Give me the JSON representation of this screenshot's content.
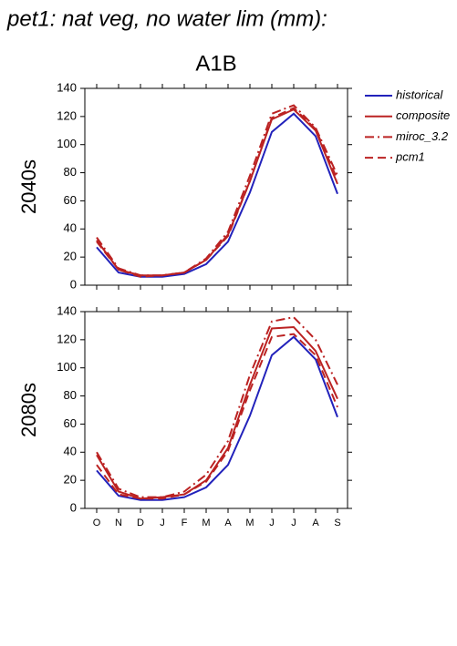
{
  "title": "pet1: nat veg, no water lim (mm):",
  "chart_data": [
    {
      "type": "line",
      "title": "A1B",
      "ylabel": "2040s",
      "ylim": [
        0,
        140
      ],
      "yticks": [
        0,
        20,
        40,
        60,
        80,
        100,
        120,
        140
      ],
      "series": [
        {
          "name": "historical",
          "color": "#2222bb",
          "linestyle": "solid",
          "values": [
            27,
            9,
            6,
            6,
            8,
            15,
            31,
            66,
            109,
            122,
            106,
            65
          ]
        },
        {
          "name": "composite",
          "color": "#bb2222",
          "linestyle": "solid",
          "values": [
            32,
            11,
            7,
            7,
            9,
            18,
            36,
            74,
            118,
            125,
            110,
            72
          ]
        },
        {
          "name": "miroc_3.2",
          "color": "#bb2222",
          "linestyle": "dashdot",
          "values": [
            34,
            12,
            7,
            7,
            9,
            19,
            38,
            78,
            122,
            128,
            112,
            78
          ]
        },
        {
          "name": "pcm1",
          "color": "#bb2222",
          "linestyle": "dashed",
          "values": [
            31,
            11,
            6,
            7,
            9,
            18,
            35,
            74,
            119,
            126,
            111,
            75
          ]
        }
      ]
    },
    {
      "type": "line",
      "ylabel": "2080s",
      "categories": [
        "O",
        "N",
        "D",
        "J",
        "F",
        "M",
        "A",
        "M",
        "J",
        "J",
        "A",
        "S"
      ],
      "ylim": [
        0,
        140
      ],
      "yticks": [
        0,
        20,
        40,
        60,
        80,
        100,
        120,
        140
      ],
      "series": [
        {
          "color": "#2222bb",
          "linestyle": "solid",
          "values": [
            27,
            9,
            6,
            6,
            8,
            15,
            31,
            66,
            109,
            122,
            106,
            65
          ]
        },
        {
          "color": "#bb2222",
          "linestyle": "solid",
          "values": [
            38,
            12,
            7,
            8,
            10,
            20,
            43,
            88,
            128,
            129,
            112,
            78
          ]
        },
        {
          "color": "#bb2222",
          "linestyle": "dashdot",
          "values": [
            40,
            14,
            8,
            8,
            12,
            24,
            48,
            95,
            133,
            136,
            120,
            88
          ]
        },
        {
          "color": "#bb2222",
          "linestyle": "dashed",
          "values": [
            31,
            10,
            7,
            7,
            10,
            19,
            41,
            84,
            122,
            124,
            109,
            72
          ]
        }
      ]
    }
  ]
}
